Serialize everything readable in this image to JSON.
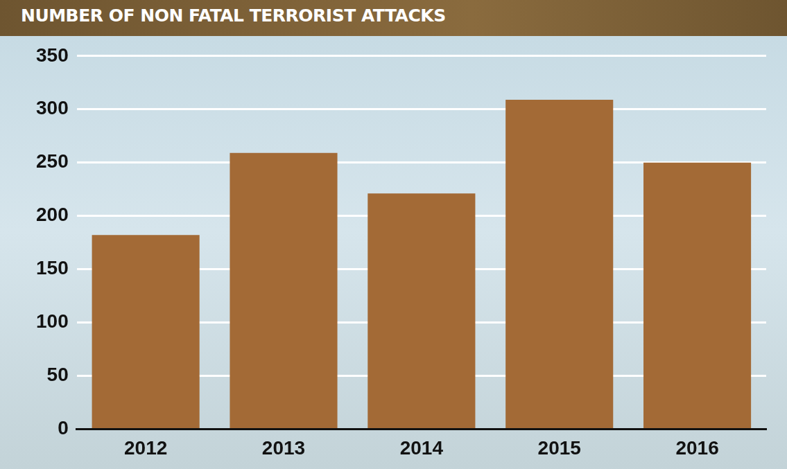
{
  "chart_data": {
    "type": "bar",
    "title": "NUMBER OF NON FATAL TERRORIST ATTACKS",
    "categories": [
      "2012",
      "2013",
      "2014",
      "2015",
      "2016"
    ],
    "values": [
      182,
      259,
      221,
      309,
      250
    ],
    "color": "#a36a36",
    "ylim": [
      0,
      350
    ],
    "yticks": [
      0,
      50,
      100,
      150,
      200,
      250,
      300,
      350
    ],
    "grid": true
  }
}
